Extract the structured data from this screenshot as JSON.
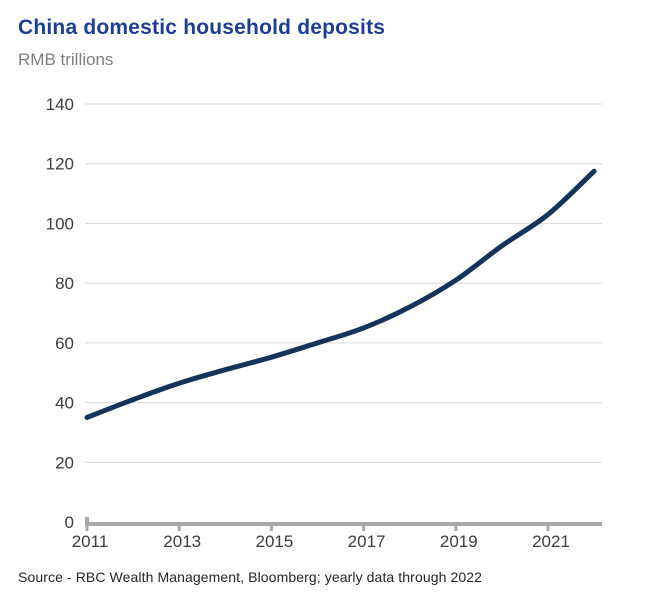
{
  "header": {
    "title": "China domestic household deposits",
    "subtitle": "RMB trillions"
  },
  "footer": {
    "source": "Source - RBC Wealth Management, Bloomberg; yearly data through 2022"
  },
  "chart_data": {
    "type": "line",
    "title": "China domestic household deposits",
    "subtitle": "RMB trillions",
    "xlabel": "",
    "ylabel": "RMB trillions",
    "x": [
      2011,
      2012,
      2013,
      2014,
      2015,
      2016,
      2017,
      2018,
      2019,
      2020,
      2021,
      2022
    ],
    "series": [
      {
        "name": "China domestic household deposits",
        "values": [
          35,
          41,
          46.5,
          51,
          55.2,
          60,
          65,
          72,
          81,
          92.5,
          103,
          117.5
        ]
      }
    ],
    "ylim": [
      0,
      140
    ],
    "yticks": [
      0,
      20,
      40,
      60,
      80,
      100,
      120,
      140
    ],
    "xticks_labeled": [
      2011,
      2013,
      2015,
      2017,
      2019,
      2021
    ],
    "grid": "horizontal",
    "legend": "none",
    "line_smoothing": true,
    "colors": {
      "line": "#143459",
      "title": "#1e3e96",
      "subtitle": "#7f7f7f",
      "axis_labels": "#3d3d3d",
      "gridline": "#d9d9d9",
      "axis_bar": "#a8a8a8",
      "source_text": "#262626"
    }
  }
}
